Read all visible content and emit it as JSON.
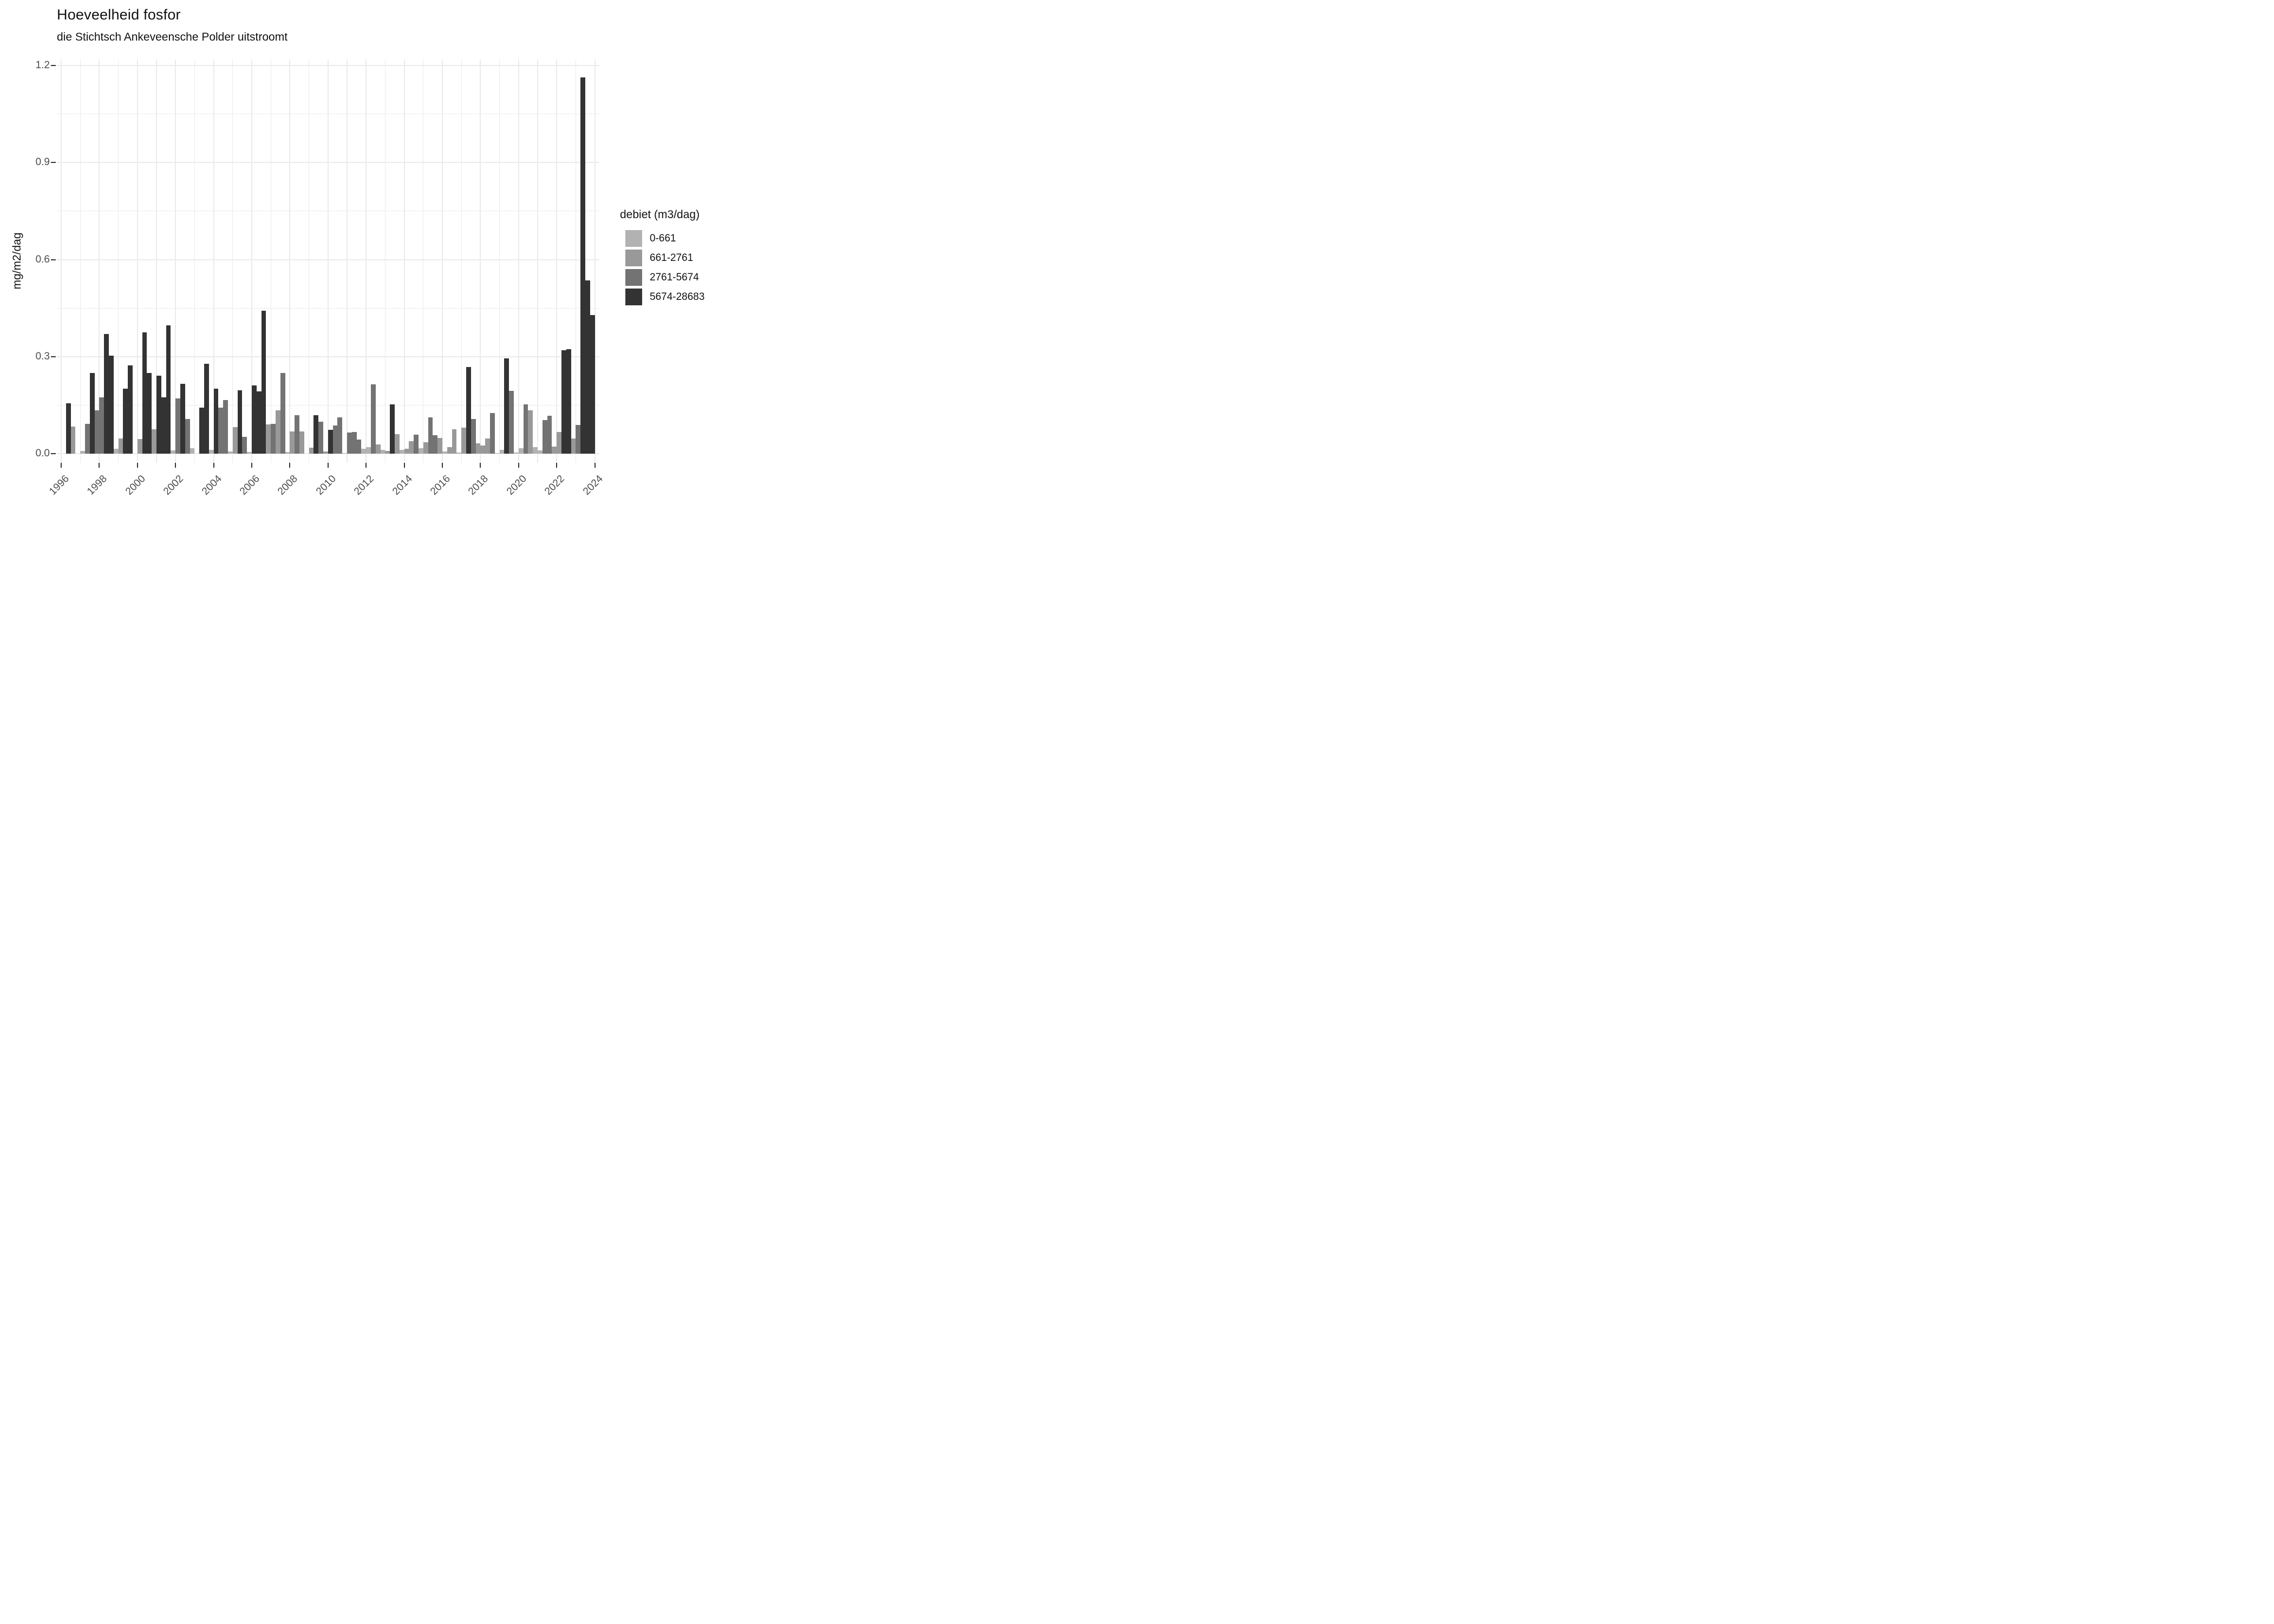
{
  "title": "Hoeveelheid fosfor",
  "subtitle": "die Stichtsch Ankeveensche Polder uitstroomt",
  "y_axis": {
    "label": "mg/m2/dag",
    "tick_labels": [
      "0.0",
      "0.3",
      "0.6",
      "0.9",
      "1.2"
    ],
    "tick_values": [
      0.0,
      0.3,
      0.6,
      0.9,
      1.2
    ]
  },
  "x_axis": {
    "tick_labels": [
      "1996",
      "1998",
      "2000",
      "2002",
      "2004",
      "2006",
      "2008",
      "2010",
      "2012",
      "2014",
      "2016",
      "2018",
      "2020",
      "2022",
      "2024"
    ],
    "tick_years": [
      1996,
      1998,
      2000,
      2002,
      2004,
      2006,
      2008,
      2010,
      2012,
      2014,
      2016,
      2018,
      2020,
      2022,
      2024
    ]
  },
  "legend": {
    "title": "debiet (m3/dag)",
    "entries": [
      {
        "label": "0-661",
        "color": "#b2b2b2"
      },
      {
        "label": "661-2761",
        "color": "#999999"
      },
      {
        "label": "2761-5674",
        "color": "#737373"
      },
      {
        "label": "5674-28683",
        "color": "#333333"
      }
    ]
  },
  "chart_data": {
    "type": "bar",
    "title": "Hoeveelheid fosfor",
    "subtitle": "die Stichtsch Ankeveensche Polder uitstroomt",
    "xlabel": "",
    "ylabel": "mg/m2/dag",
    "ylim": [
      0,
      1.2
    ],
    "x_range_years": [
      1996,
      2024
    ],
    "grid": "on",
    "legend_position": "right",
    "legend_title": "debiet (m3/dag)",
    "classes": [
      {
        "label": "0-661",
        "color": "#b2b2b2"
      },
      {
        "label": "661-2761",
        "color": "#999999"
      },
      {
        "label": "2761-5674",
        "color": "#737373"
      },
      {
        "label": "5674-28683",
        "color": "#333333"
      }
    ],
    "bar_format": [
      "year",
      "quarter",
      "value_mg_m2_dag",
      "class_index_1to4"
    ],
    "bars": [
      [
        1996,
        2,
        0.156,
        4
      ],
      [
        1996,
        3,
        0.084,
        2
      ],
      [
        1997,
        1,
        0.008,
        1
      ],
      [
        1997,
        2,
        0.092,
        3
      ],
      [
        1997,
        3,
        0.249,
        4
      ],
      [
        1997,
        4,
        0.134,
        3
      ],
      [
        1998,
        1,
        0.173,
        3
      ],
      [
        1998,
        2,
        0.37,
        4
      ],
      [
        1998,
        3,
        0.303,
        4
      ],
      [
        1998,
        4,
        0.015,
        1
      ],
      [
        1999,
        1,
        0.046,
        2
      ],
      [
        1999,
        2,
        0.2,
        4
      ],
      [
        1999,
        3,
        0.273,
        4
      ],
      [
        2000,
        1,
        0.044,
        2
      ],
      [
        2000,
        2,
        0.374,
        4
      ],
      [
        2000,
        3,
        0.249,
        4
      ],
      [
        2000,
        4,
        0.075,
        2
      ],
      [
        2001,
        1,
        0.24,
        4
      ],
      [
        2001,
        2,
        0.174,
        4
      ],
      [
        2001,
        3,
        0.397,
        4
      ],
      [
        2001,
        4,
        0.009,
        1
      ],
      [
        2002,
        1,
        0.171,
        3
      ],
      [
        2002,
        2,
        0.215,
        4
      ],
      [
        2002,
        3,
        0.107,
        3
      ],
      [
        2002,
        4,
        0.017,
        1
      ],
      [
        2003,
        2,
        0.142,
        4
      ],
      [
        2003,
        3,
        0.278,
        4
      ],
      [
        2003,
        4,
        0.011,
        1
      ],
      [
        2004,
        1,
        0.201,
        4
      ],
      [
        2004,
        2,
        0.142,
        3
      ],
      [
        2004,
        3,
        0.166,
        3
      ],
      [
        2004,
        4,
        0.007,
        1
      ],
      [
        2005,
        1,
        0.081,
        2
      ],
      [
        2005,
        2,
        0.196,
        4
      ],
      [
        2005,
        3,
        0.052,
        3
      ],
      [
        2005,
        4,
        0.005,
        1
      ],
      [
        2006,
        1,
        0.21,
        4
      ],
      [
        2006,
        2,
        0.192,
        4
      ],
      [
        2006,
        3,
        0.441,
        4
      ],
      [
        2006,
        4,
        0.09,
        2
      ],
      [
        2007,
        1,
        0.091,
        3
      ],
      [
        2007,
        2,
        0.134,
        2
      ],
      [
        2007,
        3,
        0.249,
        3
      ],
      [
        2007,
        4,
        0.004,
        1
      ],
      [
        2008,
        1,
        0.068,
        2
      ],
      [
        2008,
        2,
        0.119,
        3
      ],
      [
        2008,
        3,
        0.068,
        2
      ],
      [
        2009,
        1,
        0.018,
        2
      ],
      [
        2009,
        2,
        0.119,
        4
      ],
      [
        2009,
        3,
        0.098,
        3
      ],
      [
        2009,
        4,
        0.007,
        2
      ],
      [
        2010,
        1,
        0.073,
        4
      ],
      [
        2010,
        2,
        0.086,
        3
      ],
      [
        2010,
        3,
        0.112,
        3
      ],
      [
        2010,
        4,
        0.002,
        1
      ],
      [
        2011,
        1,
        0.064,
        3
      ],
      [
        2011,
        2,
        0.067,
        3
      ],
      [
        2011,
        3,
        0.043,
        3
      ],
      [
        2011,
        4,
        0.015,
        1
      ],
      [
        2012,
        1,
        0.02,
        1
      ],
      [
        2012,
        2,
        0.214,
        3
      ],
      [
        2012,
        3,
        0.028,
        2
      ],
      [
        2012,
        4,
        0.012,
        1
      ],
      [
        2013,
        1,
        0.008,
        2
      ],
      [
        2013,
        2,
        0.152,
        4
      ],
      [
        2013,
        3,
        0.059,
        2
      ],
      [
        2013,
        4,
        0.012,
        1
      ],
      [
        2014,
        1,
        0.014,
        2
      ],
      [
        2014,
        2,
        0.038,
        2
      ],
      [
        2014,
        3,
        0.058,
        3
      ],
      [
        2014,
        4,
        0.016,
        1
      ],
      [
        2015,
        1,
        0.034,
        2
      ],
      [
        2015,
        2,
        0.111,
        3
      ],
      [
        2015,
        3,
        0.057,
        3
      ],
      [
        2015,
        4,
        0.048,
        2
      ],
      [
        2016,
        1,
        0.006,
        1
      ],
      [
        2016,
        2,
        0.02,
        2
      ],
      [
        2016,
        3,
        0.075,
        2
      ],
      [
        2016,
        4,
        0.003,
        1
      ],
      [
        2017,
        1,
        0.08,
        2
      ],
      [
        2017,
        2,
        0.268,
        4
      ],
      [
        2017,
        3,
        0.106,
        3
      ],
      [
        2017,
        4,
        0.031,
        2
      ],
      [
        2018,
        1,
        0.025,
        2
      ],
      [
        2018,
        2,
        0.047,
        2
      ],
      [
        2018,
        3,
        0.125,
        3
      ],
      [
        2018,
        4,
        0.002,
        1
      ],
      [
        2019,
        1,
        0.011,
        1
      ],
      [
        2019,
        2,
        0.294,
        4
      ],
      [
        2019,
        3,
        0.194,
        3
      ],
      [
        2019,
        4,
        0.003,
        1
      ],
      [
        2020,
        1,
        0.017,
        1
      ],
      [
        2020,
        2,
        0.152,
        3
      ],
      [
        2020,
        3,
        0.133,
        2
      ],
      [
        2020,
        4,
        0.02,
        1
      ],
      [
        2021,
        1,
        0.009,
        1
      ],
      [
        2021,
        2,
        0.103,
        3
      ],
      [
        2021,
        3,
        0.116,
        3
      ],
      [
        2021,
        4,
        0.021,
        2
      ],
      [
        2022,
        1,
        0.067,
        2
      ],
      [
        2022,
        2,
        0.319,
        4
      ],
      [
        2022,
        3,
        0.322,
        4
      ],
      [
        2022,
        4,
        0.046,
        2
      ],
      [
        2023,
        1,
        0.088,
        3
      ],
      [
        2023,
        2,
        1.164,
        4
      ],
      [
        2023,
        3,
        0.535,
        4
      ],
      [
        2023,
        4,
        0.429,
        4
      ]
    ]
  }
}
